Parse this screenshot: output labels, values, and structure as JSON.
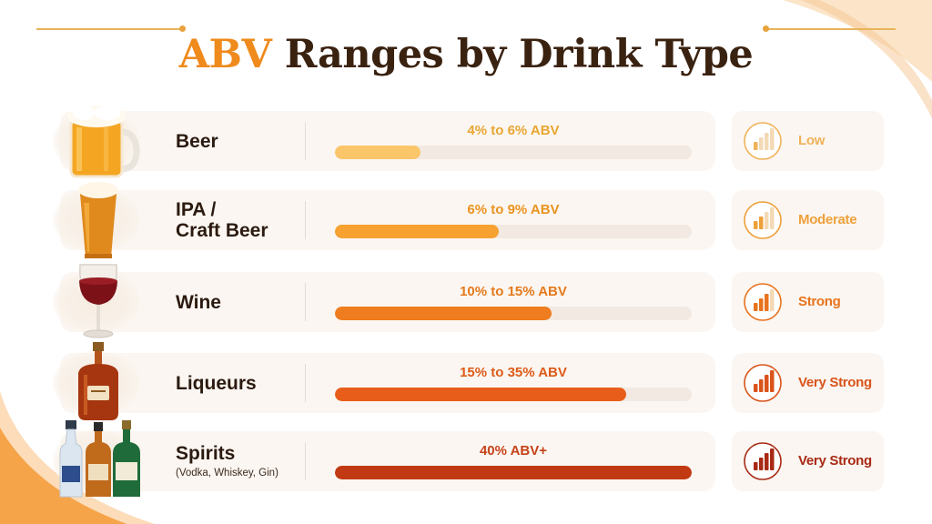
{
  "title": {
    "accent": "ABV",
    "rest": " Ranges by Drink Type"
  },
  "colors": {
    "title_text": "#3a2210",
    "title_accent": "#ef8a1c",
    "track": "#f2e9e2",
    "row_background": "#fbf6f1"
  },
  "chart_data": {
    "type": "bar",
    "orientation": "horizontal",
    "title": "ABV Ranges by Drink Type",
    "unit": "% ABV",
    "xlim": [
      0,
      40
    ],
    "categories": [
      "Beer",
      "IPA / Craft Beer",
      "Wine",
      "Liqueurs",
      "Spirits"
    ],
    "rows": [
      {
        "label_lines": [
          "Beer"
        ],
        "sublabel": "",
        "range_text": "4% to 6% ABV",
        "min": 4,
        "max": 6,
        "fill_fraction": 0.24,
        "bar_color": "#fbc56a",
        "text_color": "#e9a632",
        "strength": "Low",
        "strength_level": 1,
        "strength_color": "#f0b25a",
        "icon": "beer-mug-icon"
      },
      {
        "label_lines": [
          "IPA /",
          "Craft Beer"
        ],
        "sublabel": "",
        "range_text": "6% to 9% ABV",
        "min": 6,
        "max": 9,
        "fill_fraction": 0.46,
        "bar_color": "#f6a130",
        "text_color": "#ea9320",
        "strength": "Moderate",
        "strength_level": 2,
        "strength_color": "#eea03a",
        "icon": "pint-glass-icon"
      },
      {
        "label_lines": [
          "Wine"
        ],
        "sublabel": "",
        "range_text": "10% to 15% ABV",
        "min": 10,
        "max": 15,
        "fill_fraction": 0.607,
        "bar_color": "#ef7c1e",
        "text_color": "#e57a1d",
        "strength": "Strong",
        "strength_level": 3,
        "strength_color": "#e8731d",
        "icon": "wine-glass-icon"
      },
      {
        "label_lines": [
          "Liqueurs"
        ],
        "sublabel": "",
        "range_text": "15% to 35% ABV",
        "min": 15,
        "max": 35,
        "fill_fraction": 0.816,
        "bar_color": "#e85d1a",
        "text_color": "#de5a18",
        "strength": "Very Strong",
        "strength_level": 4,
        "strength_color": "#d9541a",
        "icon": "liqueur-bottle-icon"
      },
      {
        "label_lines": [
          "Spirits"
        ],
        "sublabel": "(Vodka, Whiskey, Gin)",
        "range_text": "40% ABV+",
        "min": 40,
        "max": null,
        "fill_fraction": 1.0,
        "bar_color": "#c23a14",
        "text_color": "#c6421a",
        "strength": "Very Strong",
        "strength_level": 4,
        "strength_color": "#a82a16",
        "icon": "spirit-bottles-icon"
      }
    ]
  }
}
